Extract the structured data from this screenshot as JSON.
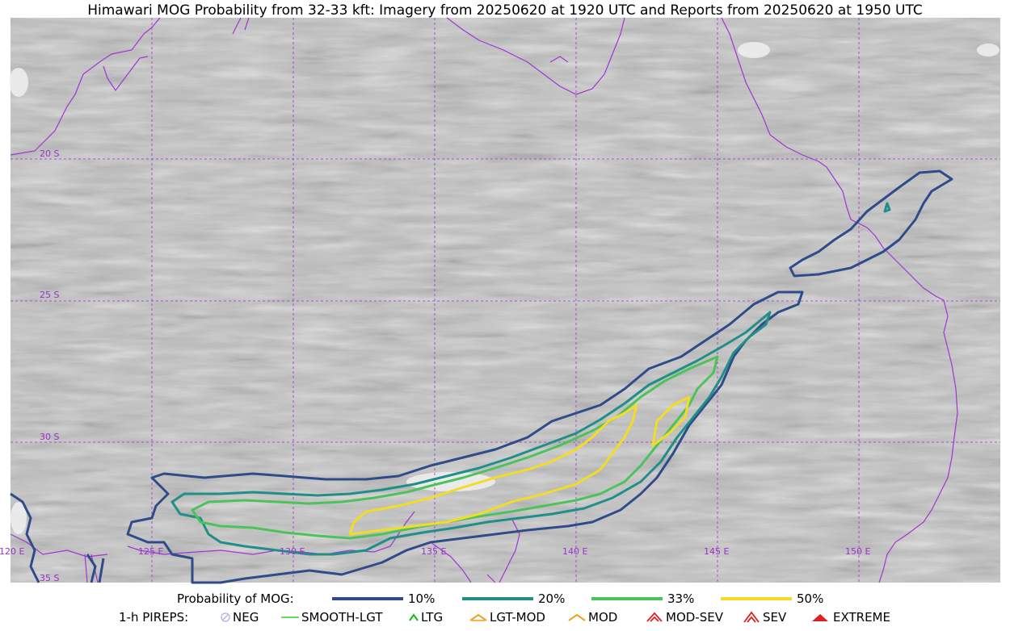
{
  "title": "Himawari MOG Probability from 32-33 kft: Imagery from 20250620 at 1920 UTC and Reports from 20250620 at 1950 UTC",
  "map": {
    "lat_labels": [
      "20 S",
      "25 S",
      "30 S",
      "35 S"
    ],
    "lon_labels": [
      "120 E",
      "125 E",
      "130 E",
      "135 E",
      "140 E",
      "145 E",
      "150 E"
    ],
    "gridline_color": "#9b30d0",
    "coastline_color": "#a233d6"
  },
  "probability_legend": {
    "label": "Probability of MOG:",
    "items": [
      {
        "label": "10%",
        "color": "#2f4b8a"
      },
      {
        "label": "20%",
        "color": "#1f8f87"
      },
      {
        "label": "33%",
        "color": "#4cc35a"
      },
      {
        "label": "50%",
        "color": "#f2dc26"
      }
    ]
  },
  "pirep_legend": {
    "label": "1-h PIREPS:",
    "items": [
      {
        "label": "NEG",
        "icon": "neg-icon",
        "color": "#b9b9f0"
      },
      {
        "label": "SMOOTH-LGT",
        "icon": "smooth-lgt-line-icon",
        "color": "#2ed12e"
      },
      {
        "label": "LTG",
        "icon": "ltg-caret-icon",
        "color": "#10c010"
      },
      {
        "label": "LGT-MOD",
        "icon": "lgt-mod-icon",
        "color": "#f0a020"
      },
      {
        "label": "MOD",
        "icon": "mod-icon",
        "color": "#f0a020"
      },
      {
        "label": "MOD-SEV",
        "icon": "mod-sev-icon",
        "color": "#e02020"
      },
      {
        "label": "SEV",
        "icon": "sev-icon",
        "color": "#e02020"
      },
      {
        "label": "EXTREME",
        "icon": "extreme-icon",
        "color": "#e02020"
      }
    ]
  }
}
